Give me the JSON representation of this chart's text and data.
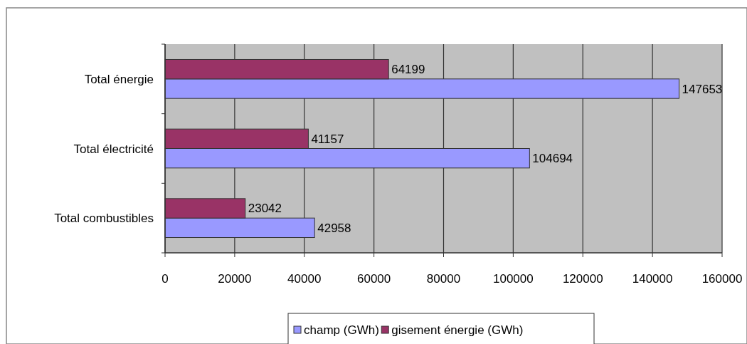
{
  "chart_data": {
    "type": "bar",
    "orientation": "horizontal",
    "categories": [
      "Total énergie",
      "Total électricité",
      "Total combustibles"
    ],
    "series": [
      {
        "name": "champ (GWh)",
        "color": "#9999ff",
        "values": [
          147653,
          104694,
          42958
        ]
      },
      {
        "name": "gisement énergie (GWh)",
        "color": "#993366",
        "values": [
          64199,
          41157,
          23042
        ]
      }
    ],
    "xlim": [
      0,
      160000
    ],
    "xticks": [
      0,
      20000,
      40000,
      60000,
      80000,
      100000,
      120000,
      140000,
      160000
    ],
    "grid": "x",
    "legend": "bottom",
    "data_labels": true
  }
}
